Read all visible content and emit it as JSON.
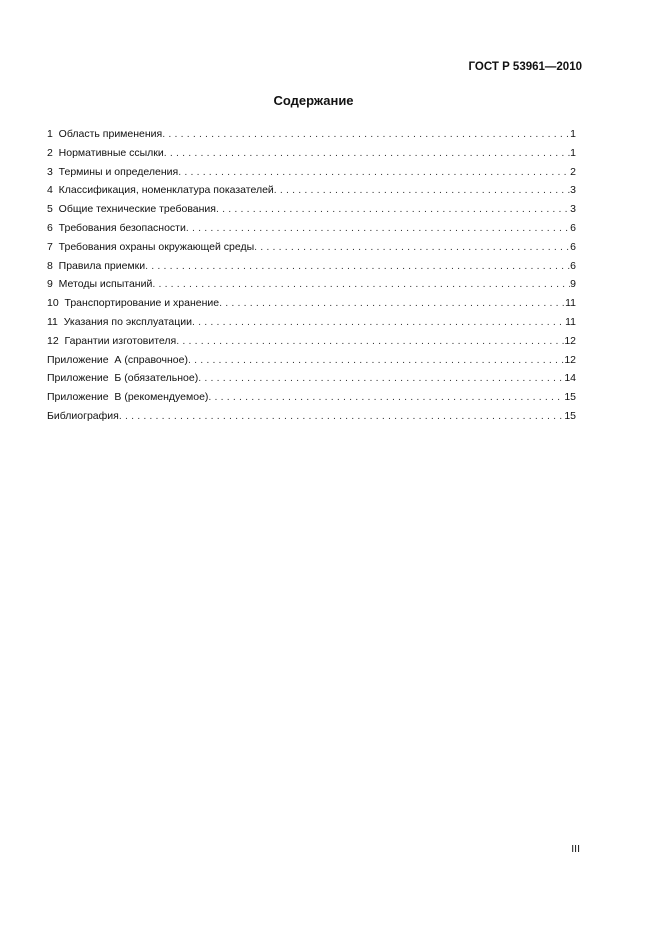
{
  "header": {
    "doc_id": "ГОСТ Р 53961—2010"
  },
  "title": "Содержание",
  "toc": [
    {
      "label": "1  Область применения",
      "page": "1"
    },
    {
      "label": "2  Нормативные ссылки",
      "page": "1"
    },
    {
      "label": "3  Термины и определения",
      "page": "2"
    },
    {
      "label": "4  Классификация, номенклатура показателей",
      "page": "3"
    },
    {
      "label": "5  Общие технические требования",
      "page": "3"
    },
    {
      "label": "6  Требования безопасности",
      "page": "6"
    },
    {
      "label": "7  Требования охраны окружающей среды",
      "page": "6"
    },
    {
      "label": "8  Правила приемки",
      "page": "6"
    },
    {
      "label": "9  Методы испытаний",
      "page": "9"
    },
    {
      "label": "10  Транспортирование и хранение",
      "page": "11"
    },
    {
      "label": "11  Указания по эксплуатации",
      "page": "11"
    },
    {
      "label": "12  Гарантии изготовителя",
      "page": "12"
    },
    {
      "label": "Приложение  А (справочное)",
      "page": "12"
    },
    {
      "label": "Приложение  Б (обязательное)",
      "page": "14"
    },
    {
      "label": "Приложение  В (рекомендуемое)",
      "page": "15"
    },
    {
      "label": "Библиография",
      "page": "15"
    }
  ],
  "footer": {
    "page_number": "III"
  }
}
